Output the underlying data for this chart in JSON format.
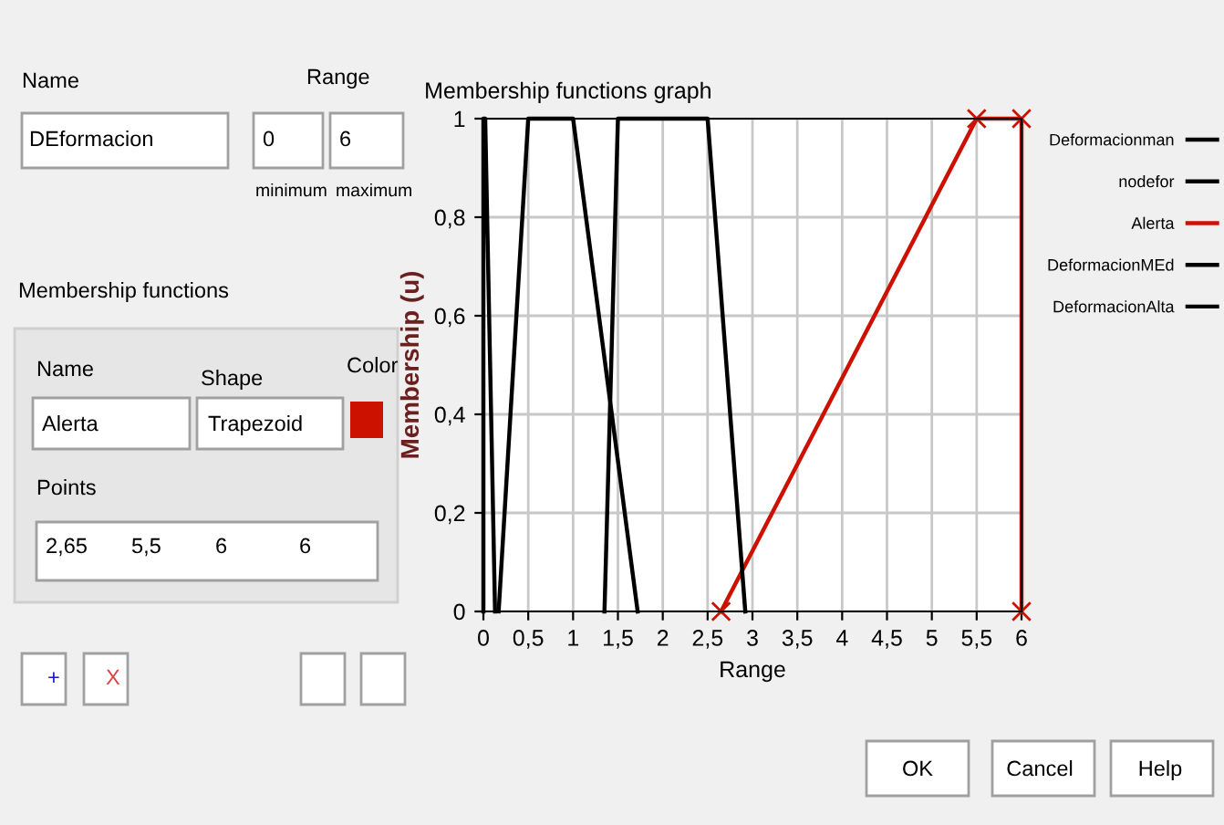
{
  "chart_data": [
    {
      "type": "other",
      "annotations": [
        "Name",
        "DEformacion",
        "Range",
        "0",
        "6",
        "minimum",
        "maximum",
        "Membership functions",
        "Name",
        "Alerta",
        "Shape",
        "Trapezoid",
        "Color",
        "Points",
        "2,65",
        "5,5",
        "6",
        "6",
        "+",
        "X",
        "OK",
        "Cancel",
        "Help"
      ]
    },
    {
      "type": "line",
      "title": "Membership functions graph",
      "xlabel": "Range",
      "ylabel": "Membership (u)",
      "series": [
        {
          "name": "Deformacionman",
          "color": "#000000",
          "x": [
            0,
            0,
            0.02,
            0.13
          ],
          "values": [
            0,
            1,
            1,
            0
          ]
        },
        {
          "name": "nodefor",
          "color": "#000000",
          "x": [
            0.17,
            0.5,
            1,
            1.72
          ],
          "values": [
            0,
            1,
            1,
            0
          ]
        },
        {
          "name": "Alerta",
          "color": "#cc1100",
          "marker": "cross",
          "x": [
            2.65,
            5.5,
            6,
            6
          ],
          "values": [
            0,
            1,
            1,
            0
          ]
        },
        {
          "name": "DeformacionMEd",
          "color": "#000000",
          "x": [
            1.35,
            1.5,
            2.5,
            2.92
          ],
          "values": [
            0,
            1,
            1,
            0
          ]
        },
        {
          "name": "DeformacionAlta",
          "color": "#000000"
        }
      ],
      "xlim": [
        0,
        6
      ],
      "ylim": [
        0,
        1
      ],
      "xticks": [
        0,
        {
          "value": 0.5,
          "label": "0,5"
        },
        1,
        {
          "value": 1.5,
          "label": "1,5"
        },
        2,
        {
          "value": 2.5,
          "label": "2,5"
        },
        3,
        {
          "value": 3.5,
          "label": "3,5"
        },
        4,
        {
          "value": 4.5,
          "label": "4,5"
        },
        5,
        {
          "value": 5.5,
          "label": "5,5"
        },
        6
      ],
      "yticks": [
        0,
        {
          "value": 0.2,
          "label": "0,2"
        },
        {
          "value": 0.4,
          "label": "0,4"
        },
        {
          "value": 0.6,
          "label": "0,6"
        },
        {
          "value": 0.8,
          "label": "0,8"
        },
        1
      ],
      "grid": true,
      "legend": "right",
      "marker": "none",
      "line_style": "solid"
    }
  ]
}
